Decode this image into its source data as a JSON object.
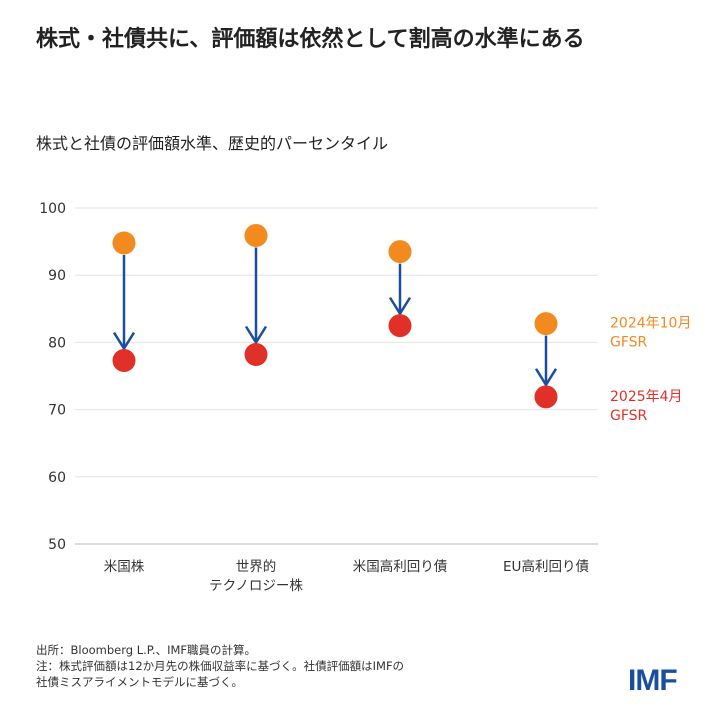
{
  "title": "株式・社債共に、評価額は依然として割高の水準にある",
  "chart_data": {
    "type": "dumbbell",
    "title": "株式・社債共に、評価額は依然として割高の水準にある",
    "subtitle": "株式と社債の評価額水準、歴史的パーセンタイル",
    "categories": [
      [
        "米国株"
      ],
      [
        "世界的",
        "テクノロジー株"
      ],
      [
        "米国高利回り債"
      ],
      [
        "EU高利回り債"
      ]
    ],
    "ylim": [
      50,
      100
    ],
    "yticks": [
      100,
      90,
      80,
      70,
      60,
      50
    ],
    "grid": true,
    "series": [
      {
        "name": "2024年10月 GFSR",
        "label_lines": [
          "2024年10月",
          "GFSR"
        ],
        "color": "#f28a20",
        "values": [
          94.8,
          95.9,
          93.5,
          82.8
        ]
      },
      {
        "name": "2025年4月 GFSR",
        "label_lines": [
          "2025年4月",
          "GFSR"
        ],
        "color": "#e03028",
        "values": [
          77.3,
          78.2,
          82.5,
          71.9
        ]
      }
    ],
    "arrow_color": "#1a4fa0",
    "legend_placement": "right"
  },
  "notes": [
    "出所：Bloomberg L.P.、IMF職員の計算。",
    "注：株式評価額は12か月先の株価収益率に基づく。社債評価額はIMFの",
    "社債ミスアライメントモデルに基づく。"
  ],
  "logo": "IMF"
}
